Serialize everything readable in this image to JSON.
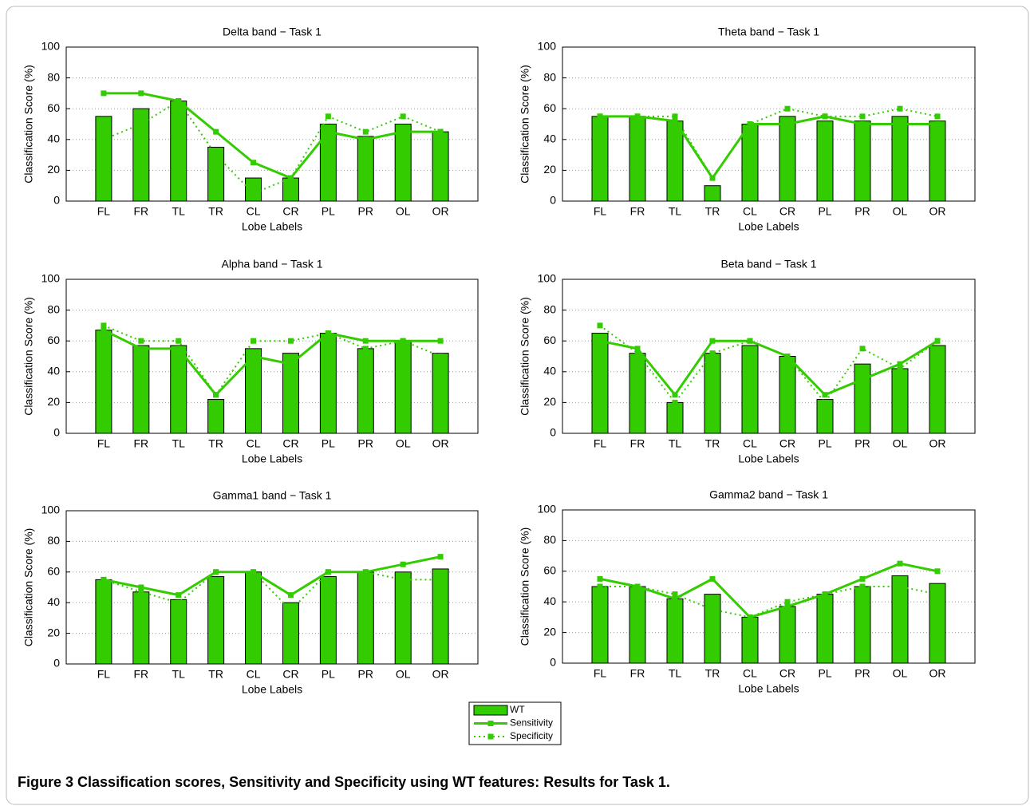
{
  "chart_data": [
    {
      "type": "bar",
      "title": "Delta band − Task 1",
      "xlabel": "Lobe Labels",
      "ylabel": "Classification Score (%)",
      "categories": [
        "FL",
        "FR",
        "TL",
        "TR",
        "CL",
        "CR",
        "PL",
        "PR",
        "OL",
        "OR"
      ],
      "ylim": [
        0,
        100
      ],
      "yticks": [
        0,
        20,
        40,
        60,
        80,
        100
      ],
      "grid": true,
      "series": [
        {
          "name": "WT",
          "style": "bar",
          "color": "#33cc00",
          "values": [
            55,
            60,
            65,
            35,
            15,
            15,
            50,
            42,
            50,
            45
          ]
        },
        {
          "name": "Sensitivity",
          "style": "solid",
          "color": "#33cc00",
          "values": [
            70,
            70,
            65,
            45,
            25,
            15,
            45,
            40,
            45,
            45
          ]
        },
        {
          "name": "Specificity",
          "style": "dotted",
          "color": "#33cc00",
          "values": [
            40,
            50,
            65,
            30,
            5,
            15,
            55,
            45,
            55,
            45
          ]
        }
      ]
    },
    {
      "type": "bar",
      "title": "Theta band − Task 1",
      "xlabel": "Lobe Labels",
      "ylabel": "Classification Score (%)",
      "categories": [
        "FL",
        "FR",
        "TL",
        "TR",
        "CL",
        "CR",
        "PL",
        "PR",
        "OL",
        "OR"
      ],
      "ylim": [
        0,
        100
      ],
      "yticks": [
        0,
        20,
        40,
        60,
        80,
        100
      ],
      "grid": true,
      "series": [
        {
          "name": "WT",
          "style": "bar",
          "color": "#33cc00",
          "values": [
            55,
            55,
            52,
            10,
            50,
            55,
            52,
            52,
            55,
            52
          ]
        },
        {
          "name": "Sensitivity",
          "style": "solid",
          "color": "#33cc00",
          "values": [
            55,
            55,
            52,
            15,
            50,
            50,
            55,
            50,
            50,
            50
          ]
        },
        {
          "name": "Specificity",
          "style": "dotted",
          "color": "#33cc00",
          "values": [
            55,
            55,
            55,
            15,
            50,
            60,
            55,
            55,
            60,
            55
          ]
        }
      ]
    },
    {
      "type": "bar",
      "title": "Alpha band − Task 1",
      "xlabel": "Lobe Labels",
      "ylabel": "Classification Score (%)",
      "categories": [
        "FL",
        "FR",
        "TL",
        "TR",
        "CL",
        "CR",
        "PL",
        "PR",
        "OL",
        "OR"
      ],
      "ylim": [
        0,
        100
      ],
      "yticks": [
        0,
        20,
        40,
        60,
        80,
        100
      ],
      "grid": true,
      "series": [
        {
          "name": "WT",
          "style": "bar",
          "color": "#33cc00",
          "values": [
            67,
            57,
            57,
            22,
            55,
            52,
            65,
            55,
            60,
            52
          ]
        },
        {
          "name": "Sensitivity",
          "style": "solid",
          "color": "#33cc00",
          "values": [
            67,
            55,
            55,
            25,
            50,
            45,
            65,
            60,
            60,
            60
          ]
        },
        {
          "name": "Specificity",
          "style": "dotted",
          "color": "#33cc00",
          "values": [
            70,
            60,
            60,
            25,
            60,
            60,
            65,
            55,
            60,
            50
          ]
        }
      ]
    },
    {
      "type": "bar",
      "title": "Beta band − Task 1",
      "xlabel": "Lobe Labels",
      "ylabel": "Classification Score (%)",
      "categories": [
        "FL",
        "FR",
        "TL",
        "TR",
        "CL",
        "CR",
        "PL",
        "PR",
        "OL",
        "OR"
      ],
      "ylim": [
        0,
        100
      ],
      "yticks": [
        0,
        20,
        40,
        60,
        80,
        100
      ],
      "grid": true,
      "series": [
        {
          "name": "WT",
          "style": "bar",
          "color": "#33cc00",
          "values": [
            65,
            52,
            20,
            52,
            57,
            50,
            22,
            45,
            42,
            57
          ]
        },
        {
          "name": "Sensitivity",
          "style": "solid",
          "color": "#33cc00",
          "values": [
            60,
            55,
            25,
            60,
            60,
            50,
            25,
            35,
            45,
            60
          ]
        },
        {
          "name": "Specificity",
          "style": "dotted",
          "color": "#33cc00",
          "values": [
            70,
            52,
            20,
            52,
            60,
            50,
            20,
            55,
            42,
            60
          ]
        }
      ]
    },
    {
      "type": "bar",
      "title": "Gamma1 band − Task 1",
      "xlabel": "Lobe Labels",
      "ylabel": "Classification Score (%)",
      "categories": [
        "FL",
        "FR",
        "TL",
        "TR",
        "CL",
        "CR",
        "PL",
        "PR",
        "OL",
        "OR"
      ],
      "ylim": [
        0,
        100
      ],
      "yticks": [
        0,
        20,
        40,
        60,
        80,
        100
      ],
      "grid": true,
      "series": [
        {
          "name": "WT",
          "style": "bar",
          "color": "#33cc00",
          "values": [
            55,
            47,
            42,
            57,
            60,
            40,
            57,
            60,
            60,
            62
          ]
        },
        {
          "name": "Sensitivity",
          "style": "solid",
          "color": "#33cc00",
          "values": [
            55,
            50,
            45,
            60,
            60,
            45,
            60,
            60,
            65,
            70
          ]
        },
        {
          "name": "Specificity",
          "style": "dotted",
          "color": "#33cc00",
          "values": [
            55,
            47,
            40,
            60,
            60,
            35,
            60,
            60,
            55,
            55
          ]
        }
      ]
    },
    {
      "type": "bar",
      "title": "Gamma2 band − Task 1",
      "xlabel": "Lobe Labels",
      "ylabel": "Classification Score (%)",
      "categories": [
        "FL",
        "FR",
        "TL",
        "TR",
        "CL",
        "CR",
        "PL",
        "PR",
        "OL",
        "OR"
      ],
      "ylim": [
        0,
        100
      ],
      "yticks": [
        0,
        20,
        40,
        60,
        80,
        100
      ],
      "grid": true,
      "series": [
        {
          "name": "WT",
          "style": "bar",
          "color": "#33cc00",
          "values": [
            50,
            50,
            42,
            45,
            30,
            37,
            45,
            50,
            57,
            52
          ]
        },
        {
          "name": "Sensitivity",
          "style": "solid",
          "color": "#33cc00",
          "values": [
            55,
            50,
            42,
            55,
            30,
            37,
            45,
            55,
            65,
            60
          ]
        },
        {
          "name": "Specificity",
          "style": "dotted",
          "color": "#33cc00",
          "values": [
            50,
            50,
            45,
            35,
            30,
            40,
            45,
            50,
            50,
            45
          ]
        }
      ]
    }
  ],
  "caption": {
    "label": "Figure 3",
    "text": "Classification scores, Sensitivity and Specificity using WT features: Results for Task 1."
  }
}
